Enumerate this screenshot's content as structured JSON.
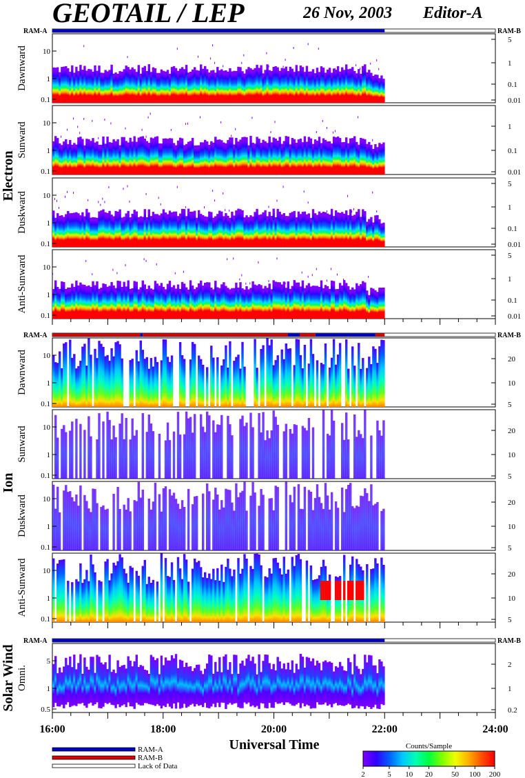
{
  "header": {
    "title": "GEOTAIL / LEP",
    "date": "26 Nov, 2003",
    "editor": "Editor-A"
  },
  "chart_data": {
    "type": "heatmap",
    "title": "GEOTAIL / LEP",
    "xlabel": "Universal Time",
    "x_ticks": [
      "16:00",
      "18:00",
      "20:00",
      "22:00",
      "24:00"
    ],
    "xlim": [
      "16:00",
      "24:00"
    ],
    "data_end": "22:00",
    "ram_labels": {
      "a": "RAM-A",
      "b": "RAM-B"
    },
    "groups": [
      {
        "name": "Electron",
        "ram_flags": [
          "A"
        ],
        "panels": [
          {
            "name": "Dawnward",
            "left_ticks": [
              "10",
              "1",
              "0.1"
            ],
            "right_ticks": [
              "5",
              "1",
              "0.1",
              "0.01"
            ]
          },
          {
            "name": "Sunward",
            "left_ticks": [
              "10",
              "1",
              "0.1"
            ],
            "right_ticks": [
              "1",
              "0.1",
              "0.01"
            ]
          },
          {
            "name": "Duskward",
            "left_ticks": [
              "10",
              "1",
              "0.1"
            ],
            "right_ticks": [
              "5",
              "1",
              "0.1",
              "0.01"
            ]
          },
          {
            "name": "Anti-Sunward",
            "left_ticks": [
              "10",
              "1",
              "0.1"
            ],
            "right_ticks": [
              "5",
              "1",
              "0.1",
              "0.01"
            ]
          }
        ]
      },
      {
        "name": "Ion",
        "ram_flags": [
          "A",
          "B"
        ],
        "panels": [
          {
            "name": "Dawnward",
            "left_ticks": [
              "10",
              "1",
              "0.1"
            ],
            "right_ticks": [
              "20",
              "10",
              "5"
            ]
          },
          {
            "name": "Sunward",
            "left_ticks": [
              "10",
              "1",
              "0.1"
            ],
            "right_ticks": [
              "20",
              "10",
              "5"
            ]
          },
          {
            "name": "Duskward",
            "left_ticks": [
              "10",
              "1",
              "0.1"
            ],
            "right_ticks": [
              "20",
              "10",
              "5"
            ]
          },
          {
            "name": "Anti-Sunward",
            "left_ticks": [
              "10",
              "1",
              "0.1"
            ],
            "right_ticks": [
              "20",
              "10",
              "5"
            ]
          }
        ]
      },
      {
        "name": "Solar Wind",
        "ram_flags": [
          "A"
        ],
        "panels": [
          {
            "name": "Omni.",
            "left_ticks": [
              "5",
              "1",
              "0.5"
            ],
            "right_ticks": [
              "2",
              "1",
              "0.2"
            ]
          }
        ]
      }
    ],
    "legend": {
      "placement": "bottom-left",
      "entries": [
        {
          "label": "RAM-A",
          "color": "#0000cc"
        },
        {
          "label": "RAM-B",
          "color": "#dd0000"
        },
        {
          "label": "Lack of Data",
          "color": "#ffffff"
        }
      ]
    },
    "colorbar": {
      "label": "Counts/Sample",
      "ticks": [
        "2",
        "5",
        "10",
        "20",
        "50",
        "100",
        "200"
      ],
      "colors": [
        "#7f00ff",
        "#3000ff",
        "#0060ff",
        "#00c8ff",
        "#00ffb0",
        "#00ff40",
        "#80ff00",
        "#f0ff00",
        "#ffb000",
        "#ff5000",
        "#ff0000"
      ]
    }
  }
}
